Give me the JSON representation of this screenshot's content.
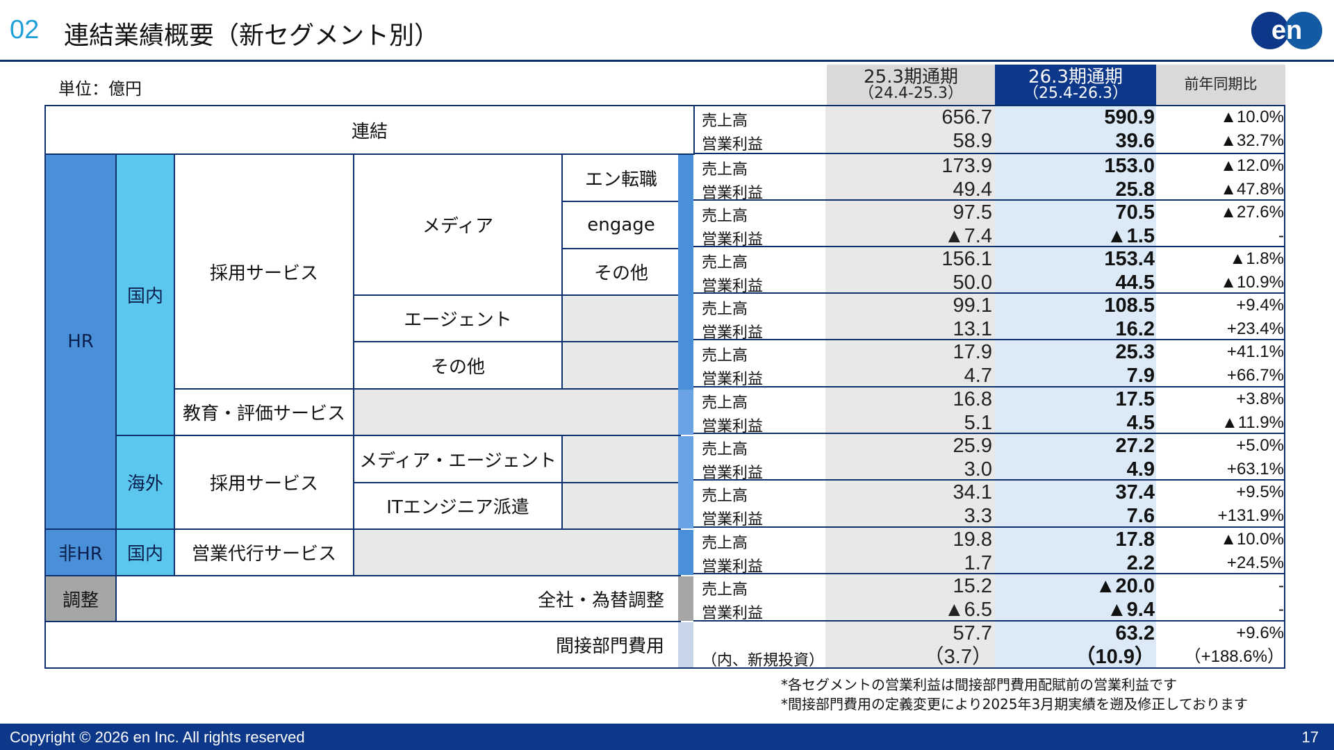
{
  "header": {
    "section_number": "02",
    "title": "連結業績概要（新セグメント別）",
    "logo_text": "en",
    "logo_colors": {
      "circle": "#0d3789",
      "dot_accent": "#1ea0d8"
    }
  },
  "unit_label": "単位：億円",
  "columns": {
    "prev": {
      "title": "25.3期通期",
      "sub": "（24.4-25.3）"
    },
    "curr": {
      "title": "26.3期通期",
      "sub": "（25.4-26.3）"
    },
    "yoy": {
      "title": "前年同期比"
    }
  },
  "labels": {
    "consolidated": "連結",
    "hr": "HR",
    "non_hr": "非HR",
    "adjust": "調整",
    "domestic": "国内",
    "overseas": "海外",
    "domestic2": "国内",
    "recruit_service": "採用サービス",
    "media": "メディア",
    "en_tenshoku": "エン転職",
    "engage": "engage",
    "media_other": "その他",
    "agent": "エージェント",
    "recruit_other": "その他",
    "education": "教育・評価サービス",
    "overseas_recruit": "採用サービス",
    "overseas_media_agent": "メディア・エージェント",
    "it_engineer": "ITエンジニア派遣",
    "sales_agency": "営業代行サービス",
    "corp_fx": "全社・為替調整",
    "indirect": "間接部門費用"
  },
  "rows": [
    {
      "l1": "売上高",
      "l2": "営業利益",
      "prev1": "656.7",
      "prev2": "58.9",
      "curr1": "590.9",
      "curr2": "39.6",
      "yoy1": "▲10.0%",
      "yoy2": "▲32.7%"
    },
    {
      "l1": "売上高",
      "l2": "営業利益",
      "prev1": "173.9",
      "prev2": "49.4",
      "curr1": "153.0",
      "curr2": "25.8",
      "yoy1": "▲12.0%",
      "yoy2": "▲47.8%"
    },
    {
      "l1": "売上高",
      "l2": "営業利益",
      "prev1": "97.5",
      "prev2": "▲7.4",
      "curr1": "70.5",
      "curr2": "▲1.5",
      "yoy1": "▲27.6%",
      "yoy2": "-"
    },
    {
      "l1": "売上高",
      "l2": "営業利益",
      "prev1": "156.1",
      "prev2": "50.0",
      "curr1": "153.4",
      "curr2": "44.5",
      "yoy1": "▲1.8%",
      "yoy2": "▲10.9%"
    },
    {
      "l1": "売上高",
      "l2": "営業利益",
      "prev1": "99.1",
      "prev2": "13.1",
      "curr1": "108.5",
      "curr2": "16.2",
      "yoy1": "+9.4%",
      "yoy2": "+23.4%"
    },
    {
      "l1": "売上高",
      "l2": "営業利益",
      "prev1": "17.9",
      "prev2": "4.7",
      "curr1": "25.3",
      "curr2": "7.9",
      "yoy1": "+41.1%",
      "yoy2": "+66.7%"
    },
    {
      "l1": "売上高",
      "l2": "営業利益",
      "prev1": "16.8",
      "prev2": "5.1",
      "curr1": "17.5",
      "curr2": "4.5",
      "yoy1": "+3.8%",
      "yoy2": "▲11.9%"
    },
    {
      "l1": "売上高",
      "l2": "営業利益",
      "prev1": "25.9",
      "prev2": "3.0",
      "curr1": "27.2",
      "curr2": "4.9",
      "yoy1": "+5.0%",
      "yoy2": "+63.1%"
    },
    {
      "l1": "売上高",
      "l2": "営業利益",
      "prev1": "34.1",
      "prev2": "3.3",
      "curr1": "37.4",
      "curr2": "7.6",
      "yoy1": "+9.5%",
      "yoy2": "+131.9%"
    },
    {
      "l1": "売上高",
      "l2": "営業利益",
      "prev1": "19.8",
      "prev2": "1.7",
      "curr1": "17.8",
      "curr2": "2.2",
      "yoy1": "▲10.0%",
      "yoy2": "+24.5%"
    },
    {
      "l1": "売上高",
      "l2": "営業利益",
      "prev1": "15.2",
      "prev2": "▲6.5",
      "curr1": "▲20.0",
      "curr2": "▲9.4",
      "yoy1": "-",
      "yoy2": "-"
    },
    {
      "l1": "",
      "l2": "（内、新規投資）",
      "prev1": "57.7",
      "prev2": "（3.7）",
      "curr1": "63.2",
      "curr2": "（10.9）",
      "yoy1": "+9.6%",
      "yoy2": "（+188.6%）"
    }
  ],
  "notes": [
    "*各セグメントの営業利益は間接部門費用配賦前の営業利益です",
    "*間接部門費用の定義変更により2025年3月期実績を遡及修正しております"
  ],
  "footer": {
    "copyright": "Copyright © 2026 en Inc. All rights reserved",
    "page": "17"
  }
}
